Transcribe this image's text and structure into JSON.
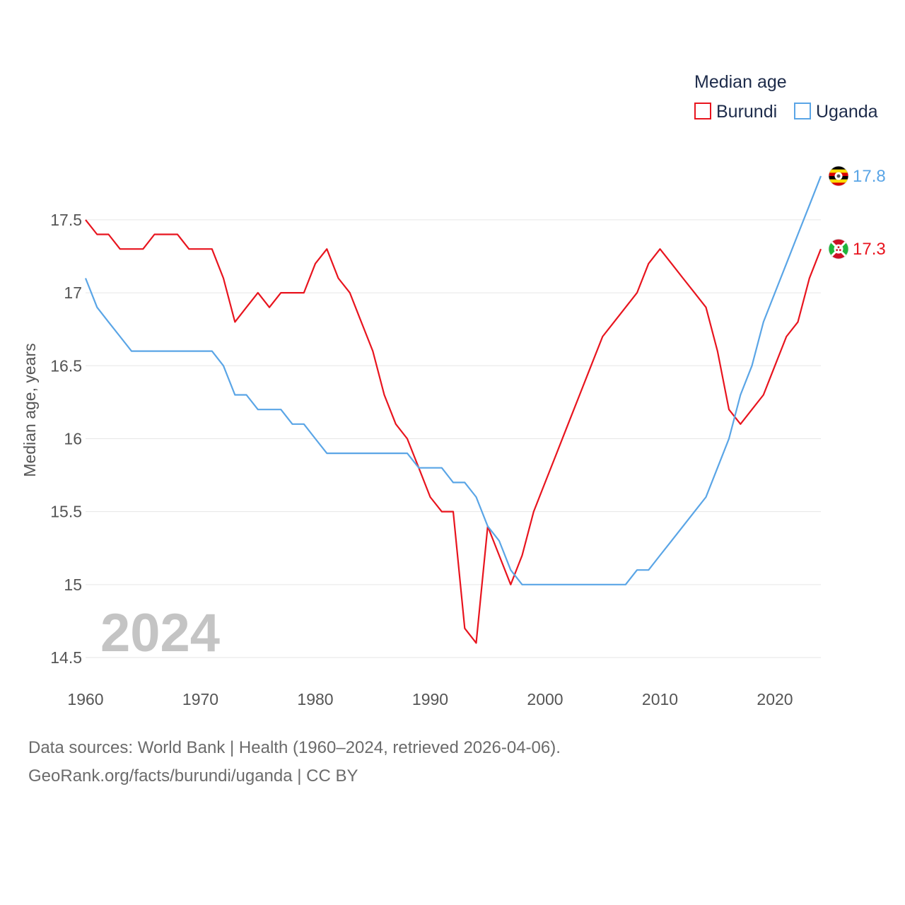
{
  "chart_data": {
    "type": "line",
    "ylabel": "Median age, years",
    "xlabel": "",
    "xlim": [
      1960,
      2024
    ],
    "ylim": [
      14.5,
      17.8
    ],
    "x_ticks": [
      1960,
      1970,
      1980,
      1990,
      2000,
      2010,
      2020
    ],
    "y_ticks": [
      14.5,
      15,
      15.5,
      16,
      16.5,
      17,
      17.5
    ],
    "y_tick_labels": [
      "14.5",
      "15",
      "15.5",
      "16",
      "16.5",
      "17",
      "17.5"
    ],
    "grid": true,
    "year_watermark": "2024",
    "legend": {
      "title": "Median age",
      "position": "top-right"
    },
    "x": [
      1960,
      1961,
      1962,
      1963,
      1964,
      1965,
      1966,
      1967,
      1968,
      1969,
      1970,
      1971,
      1972,
      1973,
      1974,
      1975,
      1976,
      1977,
      1978,
      1979,
      1980,
      1981,
      1982,
      1983,
      1984,
      1985,
      1986,
      1987,
      1988,
      1989,
      1990,
      1991,
      1992,
      1993,
      1994,
      1995,
      1996,
      1997,
      1998,
      1999,
      2000,
      2001,
      2002,
      2003,
      2004,
      2005,
      2006,
      2007,
      2008,
      2009,
      2010,
      2011,
      2012,
      2013,
      2014,
      2015,
      2016,
      2017,
      2018,
      2019,
      2020,
      2021,
      2022,
      2023,
      2024
    ],
    "series": [
      {
        "name": "Burundi",
        "color": "#e8141e",
        "end_label": "17.3",
        "flag": "burundi-flag",
        "values": [
          17.5,
          17.4,
          17.4,
          17.3,
          17.3,
          17.3,
          17.4,
          17.4,
          17.4,
          17.3,
          17.3,
          17.3,
          17.1,
          16.8,
          16.9,
          17.0,
          16.9,
          17.0,
          17.0,
          17.0,
          17.2,
          17.3,
          17.1,
          17.0,
          16.8,
          16.6,
          16.3,
          16.1,
          16.0,
          15.8,
          15.6,
          15.5,
          15.5,
          14.7,
          14.6,
          15.4,
          15.2,
          15.0,
          15.2,
          15.5,
          15.7,
          15.9,
          16.1,
          16.3,
          16.5,
          16.7,
          16.8,
          16.9,
          17.0,
          17.2,
          17.3,
          17.2,
          17.1,
          17.0,
          16.9,
          16.6,
          16.2,
          16.1,
          16.2,
          16.3,
          16.5,
          16.7,
          16.8,
          17.1,
          17.3
        ]
      },
      {
        "name": "Uganda",
        "color": "#5aa5e6",
        "end_label": "17.8",
        "flag": "uganda-flag",
        "values": [
          17.1,
          16.9,
          16.8,
          16.7,
          16.6,
          16.6,
          16.6,
          16.6,
          16.6,
          16.6,
          16.6,
          16.6,
          16.5,
          16.3,
          16.3,
          16.2,
          16.2,
          16.2,
          16.1,
          16.1,
          16.0,
          15.9,
          15.9,
          15.9,
          15.9,
          15.9,
          15.9,
          15.9,
          15.9,
          15.8,
          15.8,
          15.8,
          15.7,
          15.7,
          15.6,
          15.4,
          15.3,
          15.1,
          15.0,
          15.0,
          15.0,
          15.0,
          15.0,
          15.0,
          15.0,
          15.0,
          15.0,
          15.0,
          15.1,
          15.1,
          15.2,
          15.3,
          15.4,
          15.5,
          15.6,
          15.8,
          16.0,
          16.3,
          16.5,
          16.8,
          17.0,
          17.2,
          17.4,
          17.6,
          17.8
        ]
      }
    ]
  },
  "source": {
    "line1": "Data sources: World Bank | Health (1960–2024, retrieved 2026-04-06).",
    "line2": "GeoRank.org/facts/burundi/uganda | CC BY"
  }
}
